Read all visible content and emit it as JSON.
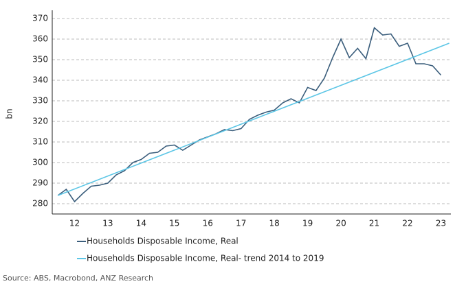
{
  "chart_data": {
    "type": "line",
    "y_label": "bn",
    "source": "Source: ABS, Macrobond, ANZ Research",
    "xlim": [
      11.33,
      23.3
    ],
    "xticks": [
      12,
      13,
      14,
      15,
      16,
      17,
      18,
      19,
      20,
      21,
      22,
      23
    ],
    "ylim": [
      275,
      374
    ],
    "yticks": [
      280,
      290,
      300,
      310,
      320,
      330,
      340,
      350,
      360,
      370
    ],
    "grid": true,
    "series": [
      {
        "name": "Households Disposable Income, Real",
        "color": "#3b5e7c",
        "x": [
          11.5,
          11.75,
          12,
          12.25,
          12.5,
          12.75,
          13,
          13.25,
          13.5,
          13.75,
          14,
          14.25,
          14.5,
          14.75,
          15,
          15.25,
          15.5,
          15.75,
          16,
          16.25,
          16.5,
          16.75,
          17,
          17.25,
          17.5,
          17.75,
          18,
          18.25,
          18.5,
          18.75,
          19,
          19.25,
          19.5,
          19.75,
          20,
          20.25,
          20.5,
          20.75,
          21,
          21.25,
          21.5,
          21.75,
          22,
          22.25,
          22.5,
          22.75,
          23
        ],
        "values": [
          284,
          287,
          281,
          285,
          288.5,
          289,
          290,
          294,
          296,
          300,
          301.5,
          304.5,
          305,
          308,
          308.5,
          306,
          308.5,
          311,
          312.5,
          314,
          316,
          315.5,
          316.5,
          321,
          323,
          324.5,
          325.5,
          329,
          331,
          329,
          336.5,
          335,
          341,
          351,
          360,
          351,
          355.5,
          350.5,
          365.5,
          362,
          362.5,
          356.5,
          358,
          348,
          348,
          347,
          342.5
        ]
      },
      {
        "name": "Households Disposable Income, Real- trend 2014 to 2019",
        "color": "#5cc6e6",
        "x": [
          11.5,
          23.25
        ],
        "values": [
          284,
          358
        ]
      }
    ]
  }
}
